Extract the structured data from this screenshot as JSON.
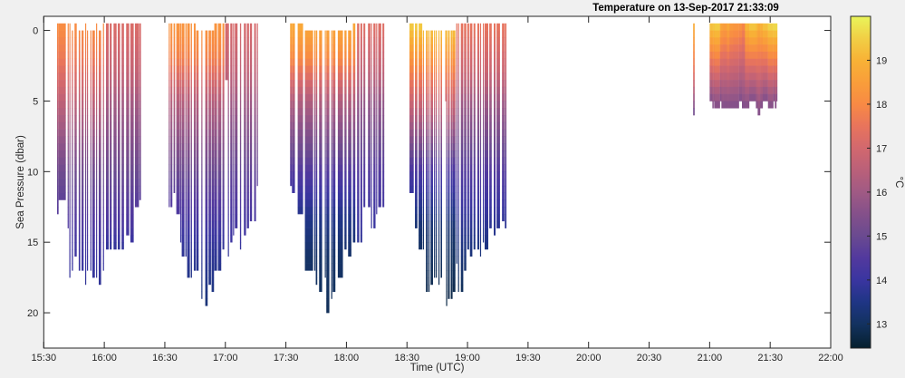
{
  "chart_data": {
    "type": "heatmap",
    "title": "Temperature on 13-Sep-2017 21:33:09",
    "xlabel": "Time (UTC)",
    "ylabel": "Sea Pressure (dbar)",
    "xlim": [
      "15:30",
      "22:00"
    ],
    "ylim": [
      -1,
      22.5
    ],
    "y_reversed": true,
    "grid": false,
    "xticks": [
      "15:30",
      "16:00",
      "16:30",
      "17:00",
      "17:30",
      "18:00",
      "18:30",
      "19:00",
      "19:30",
      "20:00",
      "20:30",
      "21:00",
      "21:30",
      "22:00"
    ],
    "yticks": [
      0,
      5,
      10,
      15,
      20
    ],
    "colorbar": {
      "label": "°C",
      "clim": [
        12.45,
        20.0
      ],
      "ticks": [
        13,
        14,
        15,
        16,
        17,
        18,
        19
      ],
      "colormap": "thermal",
      "colormap_stops": [
        [
          12.45,
          "#06202e"
        ],
        [
          13,
          "#133260"
        ],
        [
          13.5,
          "#1f3585"
        ],
        [
          14,
          "#3a35a0"
        ],
        [
          14.5,
          "#52399e"
        ],
        [
          15,
          "#6a4a90"
        ],
        [
          15.5,
          "#84508a"
        ],
        [
          16,
          "#a05a84"
        ],
        [
          16.5,
          "#ba6079"
        ],
        [
          17,
          "#d2686e"
        ],
        [
          17.5,
          "#e8745c"
        ],
        [
          18,
          "#f88a44"
        ],
        [
          18.5,
          "#f99e3a"
        ],
        [
          19,
          "#f8b236"
        ],
        [
          19.5,
          "#f1cf45"
        ],
        [
          20,
          "#e9f55a"
        ]
      ]
    },
    "cell_pressure_bin": 0.5,
    "cast_groups": [
      {
        "profile": [
          [
            -0.5,
            18.1
          ],
          [
            2,
            17.6
          ],
          [
            5,
            16.6
          ],
          [
            10,
            15.1
          ],
          [
            15,
            14.2
          ],
          [
            18,
            13.8
          ]
        ],
        "casts": [
          [
            "15:36:36",
            "15:37:21",
            -0.5,
            13
          ],
          [
            "15:37:21",
            "15:40:56",
            -0.5,
            12
          ],
          [
            "15:41:50",
            "15:42:15",
            -0.5,
            14
          ],
          [
            "15:42:40",
            "15:43:05",
            -0.5,
            17.5
          ],
          [
            "15:43:55",
            "15:44:30",
            0,
            17
          ],
          [
            "15:45:15",
            "15:46:20",
            -0.5,
            16
          ],
          [
            "15:47:20",
            "15:48:05",
            0,
            17
          ],
          [
            "15:48:45",
            "15:49:45",
            0,
            17
          ],
          [
            "15:50:30",
            "15:50:55",
            -0.5,
            18
          ],
          [
            "15:51:25",
            "15:51:50",
            0,
            17
          ],
          [
            "15:53:05",
            "15:53:30",
            0,
            17
          ],
          [
            "15:54:05",
            "15:55:20",
            0,
            17.5
          ],
          [
            "15:55:55",
            "15:56:20",
            -0.5,
            17.5
          ],
          [
            "15:57:15",
            "15:58:25",
            0,
            18
          ],
          [
            "15:59:20",
            "15:59:45",
            -0.5,
            17
          ]
        ]
      },
      {
        "profile": [
          [
            -0.5,
            17.2
          ],
          [
            3,
            16.7
          ],
          [
            5,
            16.1
          ],
          [
            10,
            15.0
          ],
          [
            14,
            14.3
          ],
          [
            15.5,
            13.8
          ]
        ],
        "casts": [
          [
            "16:00:50",
            "16:02:10",
            -0.5,
            15.5
          ],
          [
            "16:02:40",
            "16:03:40",
            -0.5,
            15.5
          ],
          [
            "16:04:35",
            "16:06:05",
            -0.5,
            15.5
          ],
          [
            "16:06:40",
            "16:07:50",
            -0.5,
            15.5
          ],
          [
            "16:08:35",
            "16:09:45",
            -0.5,
            15.5
          ],
          [
            "16:10:50",
            "16:12:20",
            -0.5,
            14.5
          ],
          [
            "16:12:55",
            "16:14:35",
            -0.5,
            15
          ],
          [
            "16:15:10",
            "16:17:10",
            -0.5,
            12.5
          ],
          [
            "16:17:20",
            "16:18:10",
            -0.5,
            12
          ]
        ]
      },
      {
        "profile": [
          [
            -0.5,
            18.3
          ],
          [
            2,
            17.8
          ],
          [
            5,
            16.4
          ],
          [
            10,
            15.0
          ],
          [
            15,
            13.9
          ],
          [
            19.5,
            13.3
          ]
        ],
        "casts": [
          [
            "16:31:56",
            "16:32:23",
            -0.5,
            12.5
          ],
          [
            "16:32:50",
            "16:33:44",
            -0.5,
            12.5
          ],
          [
            "16:34:20",
            "16:35:05",
            -0.5,
            11.5
          ],
          [
            "16:35:41",
            "16:37:29",
            -0.5,
            13
          ],
          [
            "16:37:38",
            "16:37:56",
            -0.5,
            15
          ],
          [
            "16:38:22",
            "16:39:43",
            -0.5,
            16
          ],
          [
            "16:40:10",
            "16:40:46",
            -0.5,
            16
          ],
          [
            "16:41:04",
            "16:42:25",
            -0.5,
            17.5
          ],
          [
            "16:42:52",
            "16:43:28",
            -0.5,
            17.5
          ],
          [
            "16:44:22",
            "16:45:15",
            -0.5,
            17
          ],
          [
            "16:45:33",
            "16:46:45",
            0,
            17
          ],
          [
            "16:48:06",
            "16:48:24",
            0,
            19
          ],
          [
            "16:50:02",
            "16:51:14",
            0,
            19.5
          ],
          [
            "16:51:41",
            "16:52:53",
            0,
            18
          ],
          [
            "16:53:11",
            "16:54:23",
            0,
            18.5
          ],
          [
            "16:54:31",
            "16:55:52",
            -0.5,
            17
          ],
          [
            "16:56:19",
            "16:57:58",
            -0.5,
            17
          ],
          [
            "16:58:34",
            "16:59:28",
            -0.5,
            15.5
          ]
        ]
      },
      {
        "profile": [
          [
            -0.5,
            17.1
          ],
          [
            3,
            16.6
          ],
          [
            5,
            16.0
          ],
          [
            10,
            14.8
          ],
          [
            15,
            14.0
          ],
          [
            16,
            13.8
          ]
        ],
        "casts": [
          [
            "16:59:55",
            "17:01:15",
            -0.5,
            3.5
          ],
          [
            "17:01:15",
            "17:01:42",
            -0.5,
            16
          ],
          [
            "17:02:27",
            "17:03:30",
            -0.5,
            15
          ],
          [
            "17:03:48",
            "17:04:06",
            -0.5,
            14.5
          ],
          [
            "17:04:42",
            "17:06:02",
            -0.5,
            14
          ],
          [
            "17:07:14",
            "17:07:50",
            -0.5,
            15.5
          ],
          [
            "17:09:11",
            "17:10:14",
            -0.5,
            14.5
          ],
          [
            "17:10:41",
            "17:11:43",
            -0.5,
            14
          ],
          [
            "17:12:10",
            "17:13:13",
            -0.5,
            13.5
          ],
          [
            "17:14:16",
            "17:15:10",
            -0.5,
            13.5
          ],
          [
            "17:15:37",
            "17:16:04",
            -0.5,
            11
          ]
        ]
      },
      {
        "profile": [
          [
            -0.5,
            18.8
          ],
          [
            2,
            18.0
          ],
          [
            5,
            16.3
          ],
          [
            10,
            14.5
          ],
          [
            13,
            13.6
          ],
          [
            16,
            13.1
          ],
          [
            20,
            12.9
          ]
        ],
        "casts": [
          [
            "17:32:05",
            "17:33:00",
            -0.5,
            11
          ],
          [
            "17:33:00",
            "17:34:29",
            -0.5,
            11.5
          ],
          [
            "17:35:50",
            "17:38:31",
            -0.5,
            13
          ],
          [
            "17:39:25",
            "17:43:28",
            0,
            17
          ],
          [
            "17:44:04",
            "17:44:24",
            0,
            17
          ],
          [
            "17:44:48",
            "17:45:33",
            0,
            18
          ],
          [
            "17:46:27",
            "17:47:57",
            0,
            18.5
          ],
          [
            "17:49:17",
            "17:49:36",
            0,
            17.5
          ],
          [
            "17:50:02",
            "17:51:32",
            0,
            20
          ],
          [
            "17:52:26",
            "17:52:45",
            0,
            19
          ],
          [
            "17:53:11",
            "17:54:32",
            0,
            18.5
          ],
          [
            "17:55:43",
            "17:58:16",
            0,
            17.5
          ],
          [
            "17:59:01",
            "18:00:04",
            0,
            15.5
          ],
          [
            "18:00:49",
            "18:02:27",
            0,
            16
          ],
          [
            "18:03:12",
            "18:04:24",
            -0.5,
            15
          ]
        ]
      },
      {
        "profile": [
          [
            -0.5,
            17.3
          ],
          [
            3,
            16.6
          ],
          [
            5,
            15.8
          ],
          [
            10,
            14.5
          ],
          [
            15,
            13.8
          ]
        ],
        "casts": [
          [
            "18:05:17",
            "18:06:20",
            -0.5,
            15
          ],
          [
            "18:06:56",
            "18:07:50",
            -0.5,
            15
          ],
          [
            "18:08:26",
            "18:09:20",
            -0.5,
            12.5
          ],
          [
            "18:10:41",
            "18:11:52",
            -0.5,
            12.5
          ],
          [
            "18:12:10",
            "18:12:30",
            -0.5,
            14
          ],
          [
            "18:13:22",
            "18:14:25",
            -0.5,
            14
          ],
          [
            "18:14:43",
            "18:15:00",
            -0.5,
            13
          ],
          [
            "18:15:46",
            "18:17:15",
            -0.5,
            12.5
          ],
          [
            "18:17:51",
            "18:18:45",
            -0.5,
            12.5
          ]
        ]
      },
      {
        "profile": [
          [
            -0.5,
            19.5
          ],
          [
            0.5,
            19.0
          ],
          [
            3,
            17.8
          ],
          [
            6,
            16.4
          ],
          [
            10,
            14.3
          ],
          [
            14,
            13.2
          ],
          [
            19.5,
            12.7
          ]
        ],
        "casts": [
          [
            "18:31:14",
            "18:33:21",
            -0.5,
            11.5
          ],
          [
            "18:33:57",
            "18:35:10",
            -0.5,
            14
          ],
          [
            "18:35:46",
            "18:37:35",
            -0.5,
            15.5
          ],
          [
            "18:37:54",
            "18:38:12",
            0,
            15.5
          ],
          [
            "18:39:24",
            "18:40:18",
            0,
            18.5
          ],
          [
            "18:40:36",
            "18:41:12",
            0,
            18.5
          ],
          [
            "18:41:42",
            "18:42:54",
            0,
            18
          ],
          [
            "18:43:24",
            "18:43:42",
            0,
            17.5
          ],
          [
            "18:44:18",
            "18:44:36",
            0,
            17.5
          ],
          [
            "18:45:36",
            "18:45:54",
            0,
            18
          ],
          [
            "18:46:42",
            "18:47:24",
            0,
            17.5
          ],
          [
            "18:48:57",
            "18:49:15",
            0,
            5
          ],
          [
            "18:49:24",
            "18:49:48",
            0,
            19.5
          ],
          [
            "18:50:18",
            "18:51:12",
            0,
            19
          ],
          [
            "18:51:42",
            "18:52:36",
            0,
            19
          ],
          [
            "18:52:42",
            "18:54:00",
            0,
            18.5
          ]
        ]
      },
      {
        "profile": [
          [
            -0.5,
            17.5
          ],
          [
            3,
            16.8
          ],
          [
            5,
            16.0
          ],
          [
            10,
            14.5
          ],
          [
            15,
            13.5
          ],
          [
            18.5,
            12.9
          ]
        ],
        "casts": [
          [
            "18:54:24",
            "18:54:42",
            -0.5,
            16.5
          ],
          [
            "18:55:18",
            "18:55:36",
            -0.5,
            18.5
          ],
          [
            "18:56:42",
            "18:57:54",
            -0.5,
            18.5
          ],
          [
            "18:58:18",
            "18:59:24",
            -0.5,
            17
          ],
          [
            "18:59:54",
            "19:00:48",
            -0.5,
            15.5
          ],
          [
            "19:01:12",
            "19:02:24",
            -0.5,
            16
          ],
          [
            "19:03:00",
            "19:03:54",
            -0.5,
            15.5
          ],
          [
            "19:04:54",
            "19:05:48",
            -0.5,
            15.5
          ],
          [
            "19:06:12",
            "19:06:30",
            -0.5,
            16
          ],
          [
            "19:07:36",
            "19:07:54",
            -0.5,
            15
          ],
          [
            "19:08:30",
            "19:10:18",
            -0.5,
            15.5
          ],
          [
            "19:10:48",
            "19:12:00",
            -0.5,
            14
          ],
          [
            "19:13:00",
            "19:13:54",
            -0.5,
            14.5
          ],
          [
            "19:14:24",
            "19:16:06",
            -0.5,
            14
          ],
          [
            "19:17:06",
            "19:18:18",
            -0.5,
            13.5
          ],
          [
            "19:18:30",
            "19:19:18",
            -0.5,
            14
          ]
        ]
      },
      {
        "profile": [
          [
            -0.5,
            18.9
          ],
          [
            3,
            17.4
          ],
          [
            6,
            15.0
          ]
        ],
        "casts": [
          [
            "20:51:50",
            "20:52:35",
            -0.5,
            6
          ]
        ]
      }
    ],
    "surface_block": {
      "bottom_temp": 15.4,
      "top": -0.5,
      "columns": [
        [
          "21:00:00",
          "21:01:21",
          5,
          19.4
        ],
        [
          "21:01:21",
          "21:01:56",
          5.5,
          19.5
        ],
        [
          "21:01:56",
          "21:02:14",
          5,
          19.3
        ],
        [
          "21:02:14",
          "21:05:05",
          5.5,
          19.6
        ],
        [
          "21:05:05",
          "21:05:50",
          5,
          18.9
        ],
        [
          "21:05:50",
          "21:06:35",
          5.5,
          18.7
        ],
        [
          "21:06:35",
          "21:08:31",
          5.5,
          18.6
        ],
        [
          "21:08:31",
          "21:09:52",
          5.5,
          18.9
        ],
        [
          "21:09:52",
          "21:11:40",
          5.5,
          18.5
        ],
        [
          "21:11:40",
          "21:14:30",
          5.5,
          18.4
        ],
        [
          "21:14:30",
          "21:16:00",
          5,
          18.3
        ],
        [
          "21:16:00",
          "21:17:30",
          5.5,
          18.0
        ],
        [
          "21:17:30",
          "21:19:36",
          5.5,
          19.2
        ],
        [
          "21:19:36",
          "21:22:54",
          5,
          19.5
        ],
        [
          "21:22:54",
          "21:23:48",
          5.5,
          19.3
        ],
        [
          "21:23:48",
          "21:25:00",
          6,
          19.0
        ],
        [
          "21:25:00",
          "21:26:18",
          5.5,
          19.1
        ],
        [
          "21:26:18",
          "21:28:54",
          5,
          19.4
        ],
        [
          "21:28:54",
          "21:31:33",
          5.5,
          19.7
        ],
        [
          "21:31:33",
          "21:32:18",
          5,
          19.8
        ],
        [
          "21:32:18",
          "21:33:03",
          5.5,
          19.8
        ],
        [
          "21:33:03",
          "21:33:30",
          5,
          19.8
        ]
      ]
    }
  }
}
